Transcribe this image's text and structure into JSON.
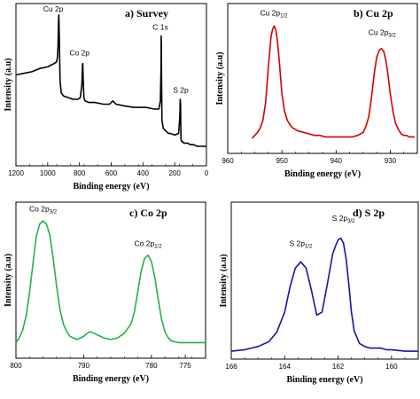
{
  "chart_data": [
    {
      "id": "a",
      "type": "line",
      "title": "a)  Survey",
      "xlabel": "Binding energy (eV)",
      "ylabel": "Intensity (a.u)",
      "xlim": [
        1200,
        0
      ],
      "ylim": [
        0,
        100
      ],
      "xticks": [
        "1200",
        "1000",
        "800",
        "600",
        "400",
        "200",
        "0"
      ],
      "color": "#000000",
      "series": [
        {
          "x": [
            1200,
            1150,
            1100,
            1050,
            1000,
            980,
            960,
            945,
            938,
            935,
            932,
            930,
            927,
            922,
            915,
            900,
            870,
            840,
            810,
            795,
            785,
            781,
            779,
            776,
            772,
            765,
            740,
            700,
            650,
            610,
            590,
            570,
            520,
            460,
            420,
            380,
            330,
            300,
            290,
            286,
            285,
            284,
            283,
            280,
            272,
            262,
            250,
            240,
            230,
            200,
            175,
            168,
            165,
            163,
            162,
            160,
            155,
            140,
            120,
            100,
            80,
            60,
            40,
            20,
            0
          ],
          "y": [
            56,
            57,
            58,
            60,
            61,
            62,
            63,
            64,
            67,
            74,
            88,
            93,
            80,
            52,
            45,
            43,
            42,
            41,
            41,
            42,
            50,
            62,
            63,
            52,
            42,
            40,
            39,
            39,
            38,
            38,
            40,
            38,
            37,
            36,
            36,
            36,
            35,
            35,
            40,
            62,
            80,
            75,
            55,
            28,
            23,
            22,
            21,
            20,
            20,
            19,
            20,
            30,
            41,
            38,
            26,
            16,
            15,
            14,
            14,
            13,
            13,
            12,
            12,
            12,
            12
          ]
        }
      ],
      "annotations": [
        {
          "text": "Cu 2p",
          "x": 965,
          "y": 95
        },
        {
          "text": "Co 2p",
          "x": 800,
          "y": 68
        },
        {
          "text": "C 1s",
          "x": 290,
          "y": 84
        },
        {
          "text": "S 2p",
          "x": 162,
          "y": 45
        }
      ]
    },
    {
      "id": "b",
      "type": "line",
      "title": "b)  Cu 2p",
      "xlabel": "Binding energy (eV)",
      "ylabel": "Intensity (a.u)",
      "xlim": [
        960,
        925
      ],
      "ylim": [
        0,
        100
      ],
      "xticks": [
        "960",
        "950",
        "940",
        "930"
      ],
      "color": "#d40000",
      "series": [
        {
          "x": [
            955.5,
            955,
            954.5,
            954,
            953.5,
            953,
            952.5,
            952,
            951.7,
            951.4,
            951.1,
            950.8,
            950.4,
            950,
            949.5,
            949,
            948.5,
            948,
            947,
            946,
            945,
            944,
            943,
            942,
            941,
            940,
            939,
            938,
            937,
            936,
            935,
            934.5,
            934,
            933.5,
            933,
            932.5,
            932,
            931.6,
            931.2,
            930.8,
            930.4,
            930,
            929.5,
            929,
            928.5,
            928,
            927.5,
            927,
            926.5,
            926,
            925.5
          ],
          "y": [
            10,
            12,
            14,
            17,
            22,
            34,
            58,
            78,
            83,
            85,
            82,
            74,
            58,
            40,
            28,
            22,
            19,
            17,
            15,
            14,
            13,
            12,
            12,
            11,
            11,
            11,
            11,
            11,
            11,
            12,
            14,
            18,
            24,
            36,
            52,
            64,
            69,
            70,
            68,
            62,
            52,
            40,
            28,
            20,
            16,
            13,
            12,
            12,
            11,
            11,
            11
          ]
        }
      ],
      "annotations": [
        {
          "text": "Cu 2p",
          "sub": "1/2",
          "x": 951.5,
          "y": 92
        },
        {
          "text": "Cu 2p",
          "sub": "3/2",
          "x": 931.5,
          "y": 79
        }
      ]
    },
    {
      "id": "c",
      "type": "line",
      "title": "c)  Co 2p",
      "xlabel": "Binding energy (eV)",
      "ylabel": "Intensity (a.u)",
      "xlim": [
        800,
        772
      ],
      "ylim": [
        0,
        100
      ],
      "xticks": [
        "800",
        "790",
        "780",
        "775"
      ],
      "color": "#22b24c",
      "series": [
        {
          "x": [
            800,
            799.5,
            799,
            798.5,
            798,
            797.5,
            797,
            796.5,
            796,
            795.5,
            795,
            794.5,
            794,
            793.5,
            793,
            792.5,
            792,
            791,
            790,
            789.5,
            789,
            788.5,
            788,
            787,
            786,
            785,
            784,
            783,
            782.5,
            782,
            781.5,
            781,
            780.5,
            780,
            779.5,
            779,
            778.5,
            778,
            777.5,
            777,
            776,
            775,
            774,
            773,
            772
          ],
          "y": [
            10,
            13,
            18,
            27,
            42,
            60,
            78,
            86,
            88,
            86,
            79,
            64,
            46,
            31,
            22,
            17,
            14,
            12,
            14,
            16,
            17,
            16,
            15,
            13,
            12,
            13,
            16,
            22,
            30,
            43,
            56,
            64,
            66,
            62,
            52,
            38,
            25,
            17,
            13,
            11,
            10,
            10,
            10,
            10,
            10
          ]
        }
      ],
      "annotations": [
        {
          "text": "Co 2p",
          "sub": "3/2",
          "x": 796,
          "y": 94
        },
        {
          "text": "Co 2p",
          "sub": "1/2",
          "x": 780.5,
          "y": 72
        }
      ]
    },
    {
      "id": "d",
      "type": "line",
      "title": "d)  S 2p",
      "xlabel": "Binding energy (eV)",
      "ylabel": "Intensity (a.u)",
      "xlim": [
        166,
        159
      ],
      "ylim": [
        0,
        100
      ],
      "xticks": [
        "166",
        "164",
        "162",
        "160"
      ],
      "color": "#1515a8",
      "series": [
        {
          "x": [
            166,
            165.5,
            165,
            164.6,
            164.3,
            164,
            163.8,
            163.6,
            163.4,
            163.2,
            163,
            162.8,
            162.6,
            162.4,
            162.2,
            162.1,
            162,
            161.9,
            161.8,
            161.7,
            161.6,
            161.5,
            161.4,
            161.2,
            161,
            160.8,
            160.6,
            160.4,
            160.2,
            160,
            159.5,
            159
          ],
          "y": [
            5,
            6,
            8,
            11,
            17,
            30,
            46,
            58,
            62,
            58,
            44,
            28,
            30,
            48,
            67,
            72,
            76,
            77,
            74,
            64,
            48,
            30,
            18,
            10,
            8,
            7,
            7,
            7,
            6,
            6,
            5,
            5
          ]
        }
      ],
      "annotations": [
        {
          "text": "S 2p",
          "sub": "1/2",
          "x": 163.4,
          "y": 72
        },
        {
          "text": "S 2p",
          "sub": "3/2",
          "x": 161.8,
          "y": 88
        }
      ]
    }
  ]
}
